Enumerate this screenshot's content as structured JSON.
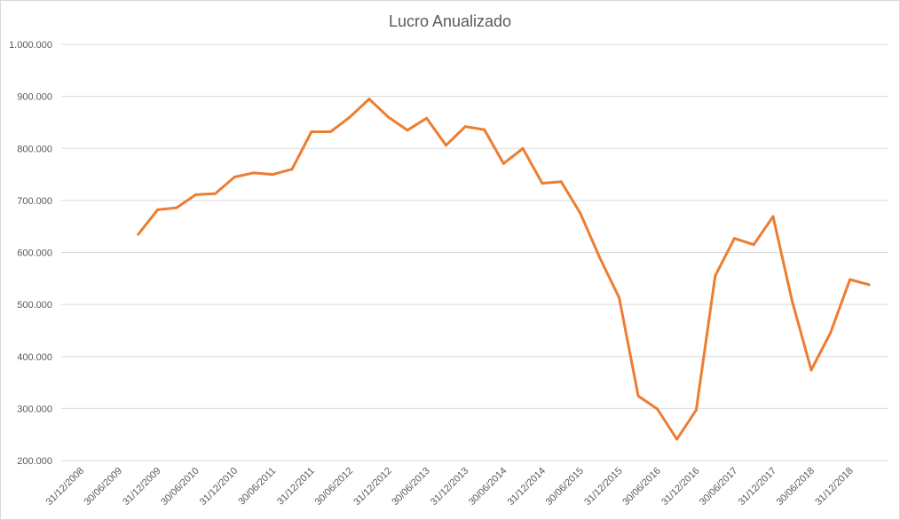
{
  "chart_data": {
    "type": "line",
    "title": "Lucro Anualizado",
    "xlabel": "",
    "ylabel": "",
    "ylim": [
      200000,
      1000000
    ],
    "y_tick_values": [
      200000,
      300000,
      400000,
      500000,
      600000,
      700000,
      800000,
      900000,
      1000000
    ],
    "y_tick_labels": [
      "200.000",
      "300.000",
      "400.000",
      "500.000",
      "600.000",
      "700.000",
      "800.000",
      "900.000",
      "1.000.000"
    ],
    "x_tick_labels": [
      "31/12/2008",
      "30/06/2009",
      "31/12/2009",
      "30/06/2010",
      "31/12/2010",
      "30/06/2011",
      "31/12/2011",
      "30/06/2012",
      "31/12/2012",
      "30/06/2013",
      "31/12/2013",
      "30/06/2014",
      "31/12/2014",
      "30/06/2015",
      "31/12/2015",
      "30/06/2016",
      "31/12/2016",
      "30/06/2017",
      "31/12/2017",
      "30/06/2018",
      "31/12/2018"
    ],
    "grid": true,
    "legend": "none",
    "series_color": "#ED7D31",
    "series": [
      {
        "x": [
          "30/09/2009",
          "31/12/2009",
          "31/03/2010",
          "30/06/2010",
          "30/09/2010",
          "31/12/2010",
          "31/03/2011",
          "30/06/2011",
          "30/09/2011",
          "31/12/2011",
          "31/03/2012",
          "30/06/2012",
          "30/09/2012",
          "31/12/2012",
          "31/03/2013",
          "30/06/2013",
          "30/09/2013",
          "31/12/2013",
          "31/03/2014",
          "30/06/2014",
          "30/09/2014",
          "31/12/2014",
          "31/03/2015",
          "30/06/2015",
          "30/09/2015",
          "31/12/2015",
          "31/03/2016",
          "30/06/2016",
          "30/09/2016",
          "31/12/2016",
          "31/03/2017",
          "30/06/2017",
          "30/09/2017",
          "31/12/2017",
          "31/03/2018",
          "30/06/2018",
          "30/09/2018",
          "31/12/2018",
          "31/03/2019"
        ],
        "values": [
          635000,
          682000,
          686000,
          711000,
          713000,
          745000,
          753000,
          750000,
          760000,
          832000,
          832000,
          860000,
          895000,
          860000,
          835000,
          858000,
          806000,
          842000,
          836000,
          771000,
          800000,
          733000,
          736000,
          675000,
          590000,
          513000,
          324000,
          299000,
          241000,
          297000,
          555000,
          627000,
          615000,
          669000,
          507000,
          374000,
          446000,
          548000,
          538000
        ]
      }
    ]
  }
}
